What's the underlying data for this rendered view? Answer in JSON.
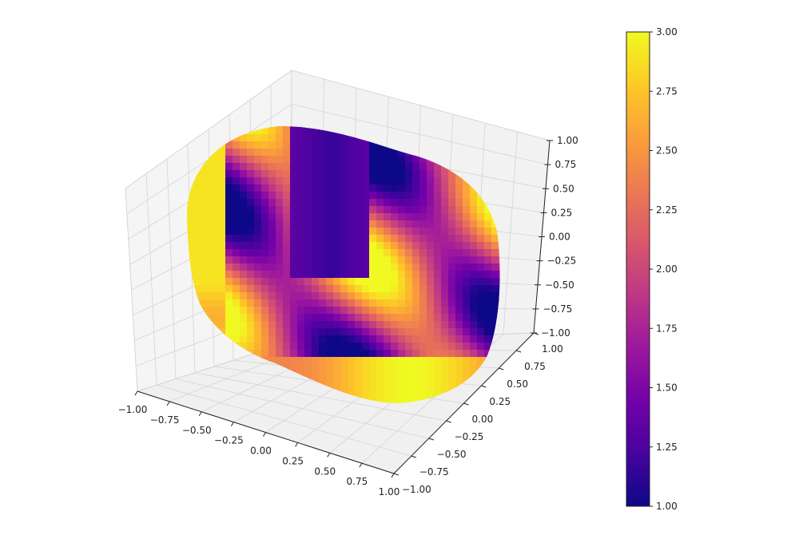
{
  "chart_data": {
    "type": "surface3d",
    "colormap": "plasma",
    "colors": {
      "plasma_stops": [
        "#0d0887",
        "#46039f",
        "#7201a8",
        "#9c179e",
        "#bd3786",
        "#d8576b",
        "#ed7953",
        "#fb9f3a",
        "#fdca26",
        "#f0f921"
      ],
      "pane": "#f2f2f2",
      "grid": "#d4d4d4",
      "axis": "#222222"
    },
    "x_axis": {
      "ticks": [
        -1.0,
        -0.75,
        -0.5,
        -0.25,
        0.0,
        0.25,
        0.5,
        0.75,
        1.0
      ],
      "tick_labels": [
        "−1.00",
        "−0.75",
        "−0.50",
        "−0.25",
        "0.00",
        "0.25",
        "0.50",
        "0.75",
        "1.00"
      ]
    },
    "y_axis": {
      "ticks": [
        -1.0,
        -0.75,
        -0.5,
        -0.25,
        0.0,
        0.25,
        0.5,
        0.75,
        1.0
      ],
      "tick_labels": [
        "−1.00",
        "−0.75",
        "−0.50",
        "−0.25",
        "0.00",
        "0.25",
        "0.50",
        "0.75",
        "1.00"
      ]
    },
    "z_axis": {
      "ticks": [
        -1.0,
        -0.75,
        -0.5,
        -0.25,
        0.0,
        0.25,
        0.5,
        0.75,
        1.0
      ],
      "tick_labels": [
        "−1.00",
        "−0.75",
        "−0.50",
        "−0.25",
        "0.00",
        "0.25",
        "0.50",
        "0.75",
        "1.00"
      ]
    },
    "colorbar": {
      "range": [
        1.0,
        3.0
      ],
      "ticks": [
        1.0,
        1.25,
        1.5,
        1.75,
        2.0,
        2.25,
        2.5,
        2.75,
        3.0
      ],
      "tick_labels": [
        "1.00",
        "1.25",
        "1.50",
        "1.75",
        "2.00",
        "2.25",
        "2.50",
        "2.75",
        "3.00"
      ]
    },
    "grid": true
  }
}
